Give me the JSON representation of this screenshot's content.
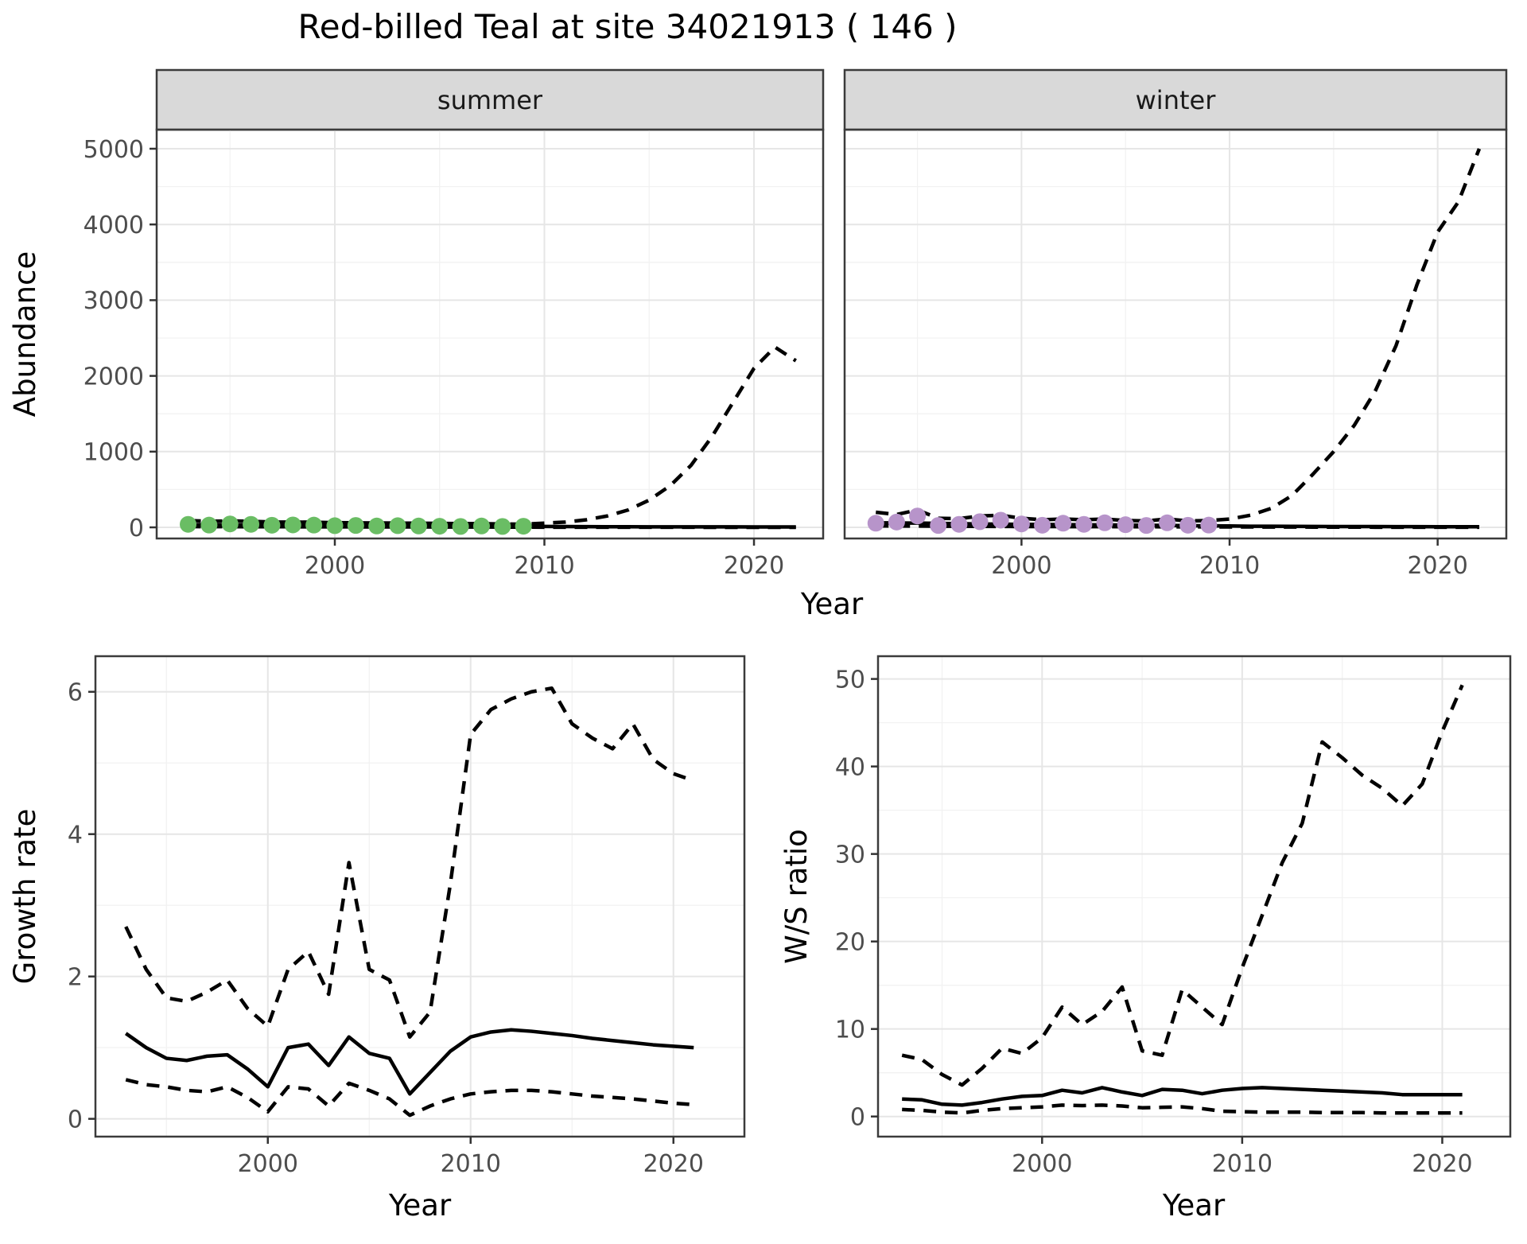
{
  "title": "Red-billed Teal at site 34021913 ( 146 )",
  "colors": {
    "summer_points": "#6ABD64",
    "winter_points": "#B794CA",
    "line": "#000000",
    "strip_background": "#D9D9D9",
    "panel_border": "#3B3B3B",
    "grid_major": "#E6E6E6",
    "grid_minor": "#F2F2F2",
    "tick_text": "#4D4D4D"
  },
  "chart_data": [
    {
      "id": "abundance",
      "type": "line",
      "ylabel": "Abundance",
      "xlabel": "Year",
      "yticks": [
        0,
        1000,
        2000,
        3000,
        4000,
        5000
      ],
      "yticks_minor": [
        500,
        1500,
        2500,
        3500,
        4500
      ],
      "xticks": [
        2000,
        2010,
        2020
      ],
      "xticks_minor": [
        1995,
        2005,
        2015
      ],
      "xlim": [
        1991.5,
        2023.3
      ],
      "ylim": [
        -147,
        5252
      ],
      "grid": true,
      "legend": "none",
      "facets": [
        {
          "label": "summer",
          "points": {
            "name": "observed-counts",
            "color": "#6ABD64",
            "years": [
              1993,
              1994,
              1995,
              1996,
              1997,
              1998,
              1999,
              2000,
              2001,
              2002,
              2003,
              2004,
              2005,
              2006,
              2007,
              2008,
              2009
            ],
            "values": [
              40,
              30,
              45,
              40,
              28,
              32,
              30,
              22,
              25,
              18,
              22,
              18,
              15,
              12,
              18,
              12,
              15
            ]
          },
          "series": [
            {
              "name": "model-fit",
              "style": "solid",
              "years": [
                1993,
                1994,
                1995,
                1996,
                1997,
                1998,
                1999,
                2000,
                2001,
                2002,
                2003,
                2004,
                2005,
                2006,
                2007,
                2008,
                2009,
                2010,
                2011,
                2012,
                2013,
                2014,
                2015,
                2016,
                2017,
                2018,
                2019,
                2020,
                2021,
                2022
              ],
              "values": [
                35,
                33,
                32,
                31,
                30,
                29,
                28,
                26,
                25,
                24,
                23,
                22,
                21,
                20,
                18,
                16,
                14,
                12,
                10,
                9,
                8,
                8,
                7,
                7,
                6,
                6,
                6,
                5,
                5,
                5
              ]
            },
            {
              "name": "upper-ci",
              "style": "dashed",
              "years": [
                1993,
                1994,
                1995,
                1996,
                1997,
                1998,
                1999,
                2000,
                2001,
                2002,
                2003,
                2004,
                2005,
                2006,
                2007,
                2008,
                2009,
                2010,
                2011,
                2012,
                2013,
                2014,
                2015,
                2016,
                2017,
                2018,
                2019,
                2020,
                2021,
                2022
              ],
              "values": [
                90,
                80,
                85,
                80,
                70,
                70,
                68,
                62,
                60,
                58,
                56,
                55,
                52,
                50,
                48,
                45,
                42,
                55,
                70,
                100,
                150,
                230,
                360,
                550,
                820,
                1200,
                1650,
                2100,
                2380,
                2200
              ]
            },
            {
              "name": "lower-ci",
              "style": "dashed",
              "years": [
                1993,
                1994,
                1995,
                1996,
                1997,
                1998,
                1999,
                2000,
                2001,
                2002,
                2003,
                2004,
                2005,
                2006,
                2007,
                2008,
                2009,
                2010,
                2011,
                2012,
                2013,
                2014,
                2015,
                2016,
                2017,
                2018,
                2019,
                2020,
                2021,
                2022
              ],
              "values": [
                10,
                9,
                9,
                8,
                8,
                7,
                7,
                6,
                6,
                5,
                5,
                5,
                4,
                4,
                4,
                3,
                3,
                2,
                2,
                2,
                1,
                1,
                1,
                1,
                1,
                0,
                0,
                0,
                0,
                0
              ]
            }
          ]
        },
        {
          "label": "winter",
          "points": {
            "name": "observed-counts",
            "color": "#B794CA",
            "years": [
              1993,
              1994,
              1995,
              1996,
              1997,
              1998,
              1999,
              2000,
              2001,
              2002,
              2003,
              2004,
              2005,
              2006,
              2007,
              2008,
              2009
            ],
            "values": [
              55,
              70,
              150,
              25,
              40,
              75,
              95,
              45,
              28,
              55,
              40,
              60,
              35,
              25,
              60,
              28,
              30
            ]
          },
          "series": [
            {
              "name": "model-fit",
              "style": "solid",
              "years": [
                1993,
                1994,
                1995,
                1996,
                1997,
                1998,
                1999,
                2000,
                2001,
                2002,
                2003,
                2004,
                2005,
                2006,
                2007,
                2008,
                2009,
                2010,
                2011,
                2012,
                2013,
                2014,
                2015,
                2016,
                2017,
                2018,
                2019,
                2020,
                2021,
                2022
              ],
              "values": [
                60,
                58,
                56,
                52,
                48,
                45,
                42,
                40,
                38,
                36,
                34,
                32,
                30,
                28,
                25,
                22,
                20,
                18,
                15,
                14,
                13,
                12,
                11,
                10,
                10,
                9,
                9,
                8,
                8,
                8
              ]
            },
            {
              "name": "upper-ci",
              "style": "dashed",
              "years": [
                1993,
                1994,
                1995,
                1996,
                1997,
                1998,
                1999,
                2000,
                2001,
                2002,
                2003,
                2004,
                2005,
                2006,
                2007,
                2008,
                2009,
                2010,
                2011,
                2012,
                2013,
                2014,
                2015,
                2016,
                2017,
                2018,
                2019,
                2020,
                2021,
                2022
              ],
              "values": [
                200,
                170,
                230,
                120,
                115,
                150,
                160,
                120,
                100,
                110,
                100,
                110,
                90,
                85,
                110,
                85,
                90,
                110,
                160,
                250,
                420,
                700,
                1000,
                1350,
                1800,
                2400,
                3200,
                3900,
                4300,
                5000
              ]
            },
            {
              "name": "lower-ci",
              "style": "dashed",
              "years": [
                1993,
                1994,
                1995,
                1996,
                1997,
                1998,
                1999,
                2000,
                2001,
                2002,
                2003,
                2004,
                2005,
                2006,
                2007,
                2008,
                2009,
                2010,
                2011,
                2012,
                2013,
                2014,
                2015,
                2016,
                2017,
                2018,
                2019,
                2020,
                2021,
                2022
              ],
              "values": [
                20,
                18,
                17,
                15,
                14,
                13,
                12,
                11,
                10,
                10,
                9,
                9,
                8,
                8,
                7,
                7,
                6,
                5,
                5,
                4,
                4,
                3,
                3,
                3,
                2,
                2,
                2,
                2,
                2,
                2
              ]
            }
          ]
        }
      ]
    },
    {
      "id": "growth",
      "type": "line",
      "ylabel": "Growth rate",
      "xlabel": "Year",
      "yticks": [
        0,
        2,
        4,
        6
      ],
      "yticks_minor": [
        1,
        3,
        5
      ],
      "xticks": [
        2000,
        2010,
        2020
      ],
      "xticks_minor": [
        1995,
        2005,
        2015
      ],
      "xlim": [
        1991.5,
        2023.5
      ],
      "ylim": [
        -0.25,
        6.5
      ],
      "grid": true,
      "legend": "none",
      "series": [
        {
          "name": "model-fit",
          "style": "solid",
          "years": [
            1993,
            1994,
            1995,
            1996,
            1997,
            1998,
            1999,
            2000,
            2001,
            2002,
            2003,
            2004,
            2005,
            2006,
            2007,
            2008,
            2009,
            2010,
            2011,
            2012,
            2013,
            2014,
            2015,
            2016,
            2017,
            2018,
            2019,
            2020,
            2021
          ],
          "values": [
            1.2,
            1.0,
            0.85,
            0.82,
            0.88,
            0.9,
            0.7,
            0.45,
            1.0,
            1.05,
            0.75,
            1.15,
            0.92,
            0.85,
            0.35,
            0.65,
            0.95,
            1.15,
            1.22,
            1.25,
            1.23,
            1.2,
            1.17,
            1.13,
            1.1,
            1.07,
            1.04,
            1.02,
            1.0
          ]
        },
        {
          "name": "upper-ci",
          "style": "dashed",
          "years": [
            1993,
            1994,
            1995,
            1996,
            1997,
            1998,
            1999,
            2000,
            2001,
            2002,
            2003,
            2004,
            2005,
            2006,
            2007,
            2008,
            2009,
            2010,
            2011,
            2012,
            2013,
            2014,
            2015,
            2016,
            2017,
            2018,
            2019,
            2020,
            2021
          ],
          "values": [
            2.7,
            2.1,
            1.7,
            1.65,
            1.78,
            1.95,
            1.55,
            1.3,
            2.1,
            2.35,
            1.75,
            3.6,
            2.1,
            1.95,
            1.15,
            1.5,
            3.3,
            5.4,
            5.75,
            5.9,
            6.0,
            6.05,
            5.55,
            5.35,
            5.2,
            5.55,
            5.05,
            4.85,
            4.75
          ]
        },
        {
          "name": "lower-ci",
          "style": "dashed",
          "years": [
            1993,
            1994,
            1995,
            1996,
            1997,
            1998,
            1999,
            2000,
            2001,
            2002,
            2003,
            2004,
            2005,
            2006,
            2007,
            2008,
            2009,
            2010,
            2011,
            2012,
            2013,
            2014,
            2015,
            2016,
            2017,
            2018,
            2019,
            2020,
            2021
          ],
          "values": [
            0.55,
            0.48,
            0.45,
            0.4,
            0.38,
            0.45,
            0.3,
            0.1,
            0.45,
            0.42,
            0.18,
            0.5,
            0.4,
            0.28,
            0.05,
            0.18,
            0.28,
            0.35,
            0.38,
            0.4,
            0.4,
            0.38,
            0.35,
            0.32,
            0.3,
            0.28,
            0.25,
            0.22,
            0.2
          ]
        }
      ]
    },
    {
      "id": "ws",
      "type": "line",
      "ylabel": "W/S ratio",
      "xlabel": "Year",
      "yticks": [
        0,
        10,
        20,
        30,
        40,
        50
      ],
      "yticks_minor": [
        5,
        15,
        25,
        35,
        45
      ],
      "xticks": [
        2000,
        2010,
        2020
      ],
      "xticks_minor": [
        1995,
        2005,
        2015
      ],
      "xlim": [
        1991.8,
        2023.4
      ],
      "ylim": [
        -2.3,
        52.6
      ],
      "grid": true,
      "legend": "none",
      "series": [
        {
          "name": "model-fit",
          "style": "solid",
          "years": [
            1993,
            1994,
            1995,
            1996,
            1997,
            1998,
            1999,
            2000,
            2001,
            2002,
            2003,
            2004,
            2005,
            2006,
            2007,
            2008,
            2009,
            2010,
            2011,
            2012,
            2013,
            2014,
            2015,
            2016,
            2017,
            2018,
            2019,
            2020,
            2021
          ],
          "values": [
            2.0,
            1.9,
            1.4,
            1.3,
            1.6,
            2.0,
            2.3,
            2.4,
            3.0,
            2.7,
            3.3,
            2.8,
            2.4,
            3.1,
            3.0,
            2.6,
            3.0,
            3.2,
            3.3,
            3.2,
            3.1,
            3.0,
            2.9,
            2.8,
            2.7,
            2.5,
            2.5,
            2.5,
            2.5
          ]
        },
        {
          "name": "upper-ci",
          "style": "dashed",
          "years": [
            1993,
            1994,
            1995,
            1996,
            1997,
            1998,
            1999,
            2000,
            2001,
            2002,
            2003,
            2004,
            2005,
            2006,
            2007,
            2008,
            2009,
            2010,
            2011,
            2012,
            2013,
            2014,
            2015,
            2016,
            2017,
            2018,
            2019,
            2020,
            2021
          ],
          "values": [
            7.0,
            6.5,
            4.8,
            3.6,
            5.5,
            7.8,
            7.2,
            9.0,
            12.5,
            10.5,
            12.0,
            14.8,
            7.5,
            7.0,
            14.5,
            12.5,
            10.5,
            17.0,
            23.0,
            29.0,
            33.5,
            42.8,
            41.0,
            39.0,
            37.5,
            35.5,
            38.0,
            44.0,
            49.3
          ]
        },
        {
          "name": "lower-ci",
          "style": "dashed",
          "years": [
            1993,
            1994,
            1995,
            1996,
            1997,
            1998,
            1999,
            2000,
            2001,
            2002,
            2003,
            2004,
            2005,
            2006,
            2007,
            2008,
            2009,
            2010,
            2011,
            2012,
            2013,
            2014,
            2015,
            2016,
            2017,
            2018,
            2019,
            2020,
            2021
          ],
          "values": [
            0.8,
            0.7,
            0.5,
            0.4,
            0.7,
            0.9,
            1.0,
            1.1,
            1.3,
            1.25,
            1.3,
            1.2,
            1.0,
            1.05,
            1.1,
            0.9,
            0.6,
            0.55,
            0.5,
            0.5,
            0.5,
            0.45,
            0.45,
            0.45,
            0.4,
            0.4,
            0.4,
            0.4,
            0.4
          ]
        }
      ]
    }
  ]
}
